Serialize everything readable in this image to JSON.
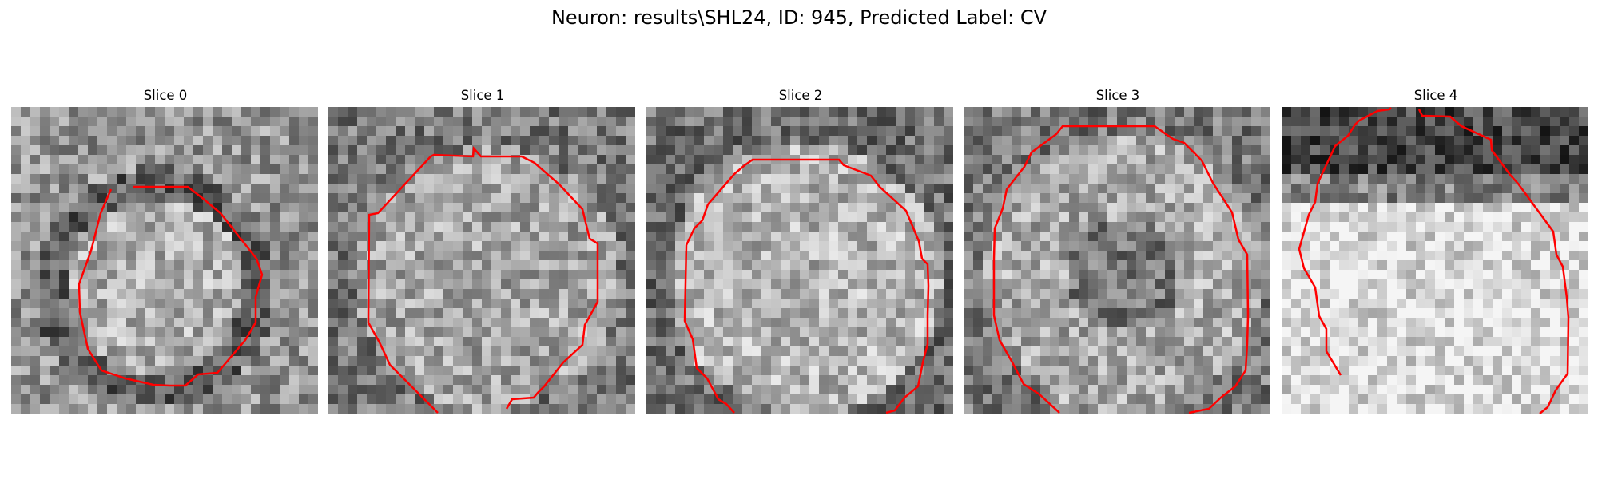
{
  "figure": {
    "title": "Neuron: results\\SHL24, ID: 945, Predicted Label: CV"
  },
  "overlay_color": "#ff0000",
  "panels": [
    {
      "title": "Slice 0",
      "content": "noisy grayscale microscopy patch with darker ring around a lighter round region; red contour outlining the round region"
    },
    {
      "title": "Slice 1",
      "content": "noisy grayscale patch with a large lighter round region; red contour outlining it, open at the bottom"
    },
    {
      "title": "Slice 2",
      "content": "noisy grayscale patch with a large lighter round region; red contour outlining it, open at the bottom"
    },
    {
      "title": "Slice 3",
      "content": "noisy grayscale patch with a large round region with darker center; red contour outlining it, open at the bottom"
    },
    {
      "title": "Slice 4",
      "content": "dark band across the top over a light lower region; red contour running along the top and both sides, open at the bottom"
    }
  ]
}
